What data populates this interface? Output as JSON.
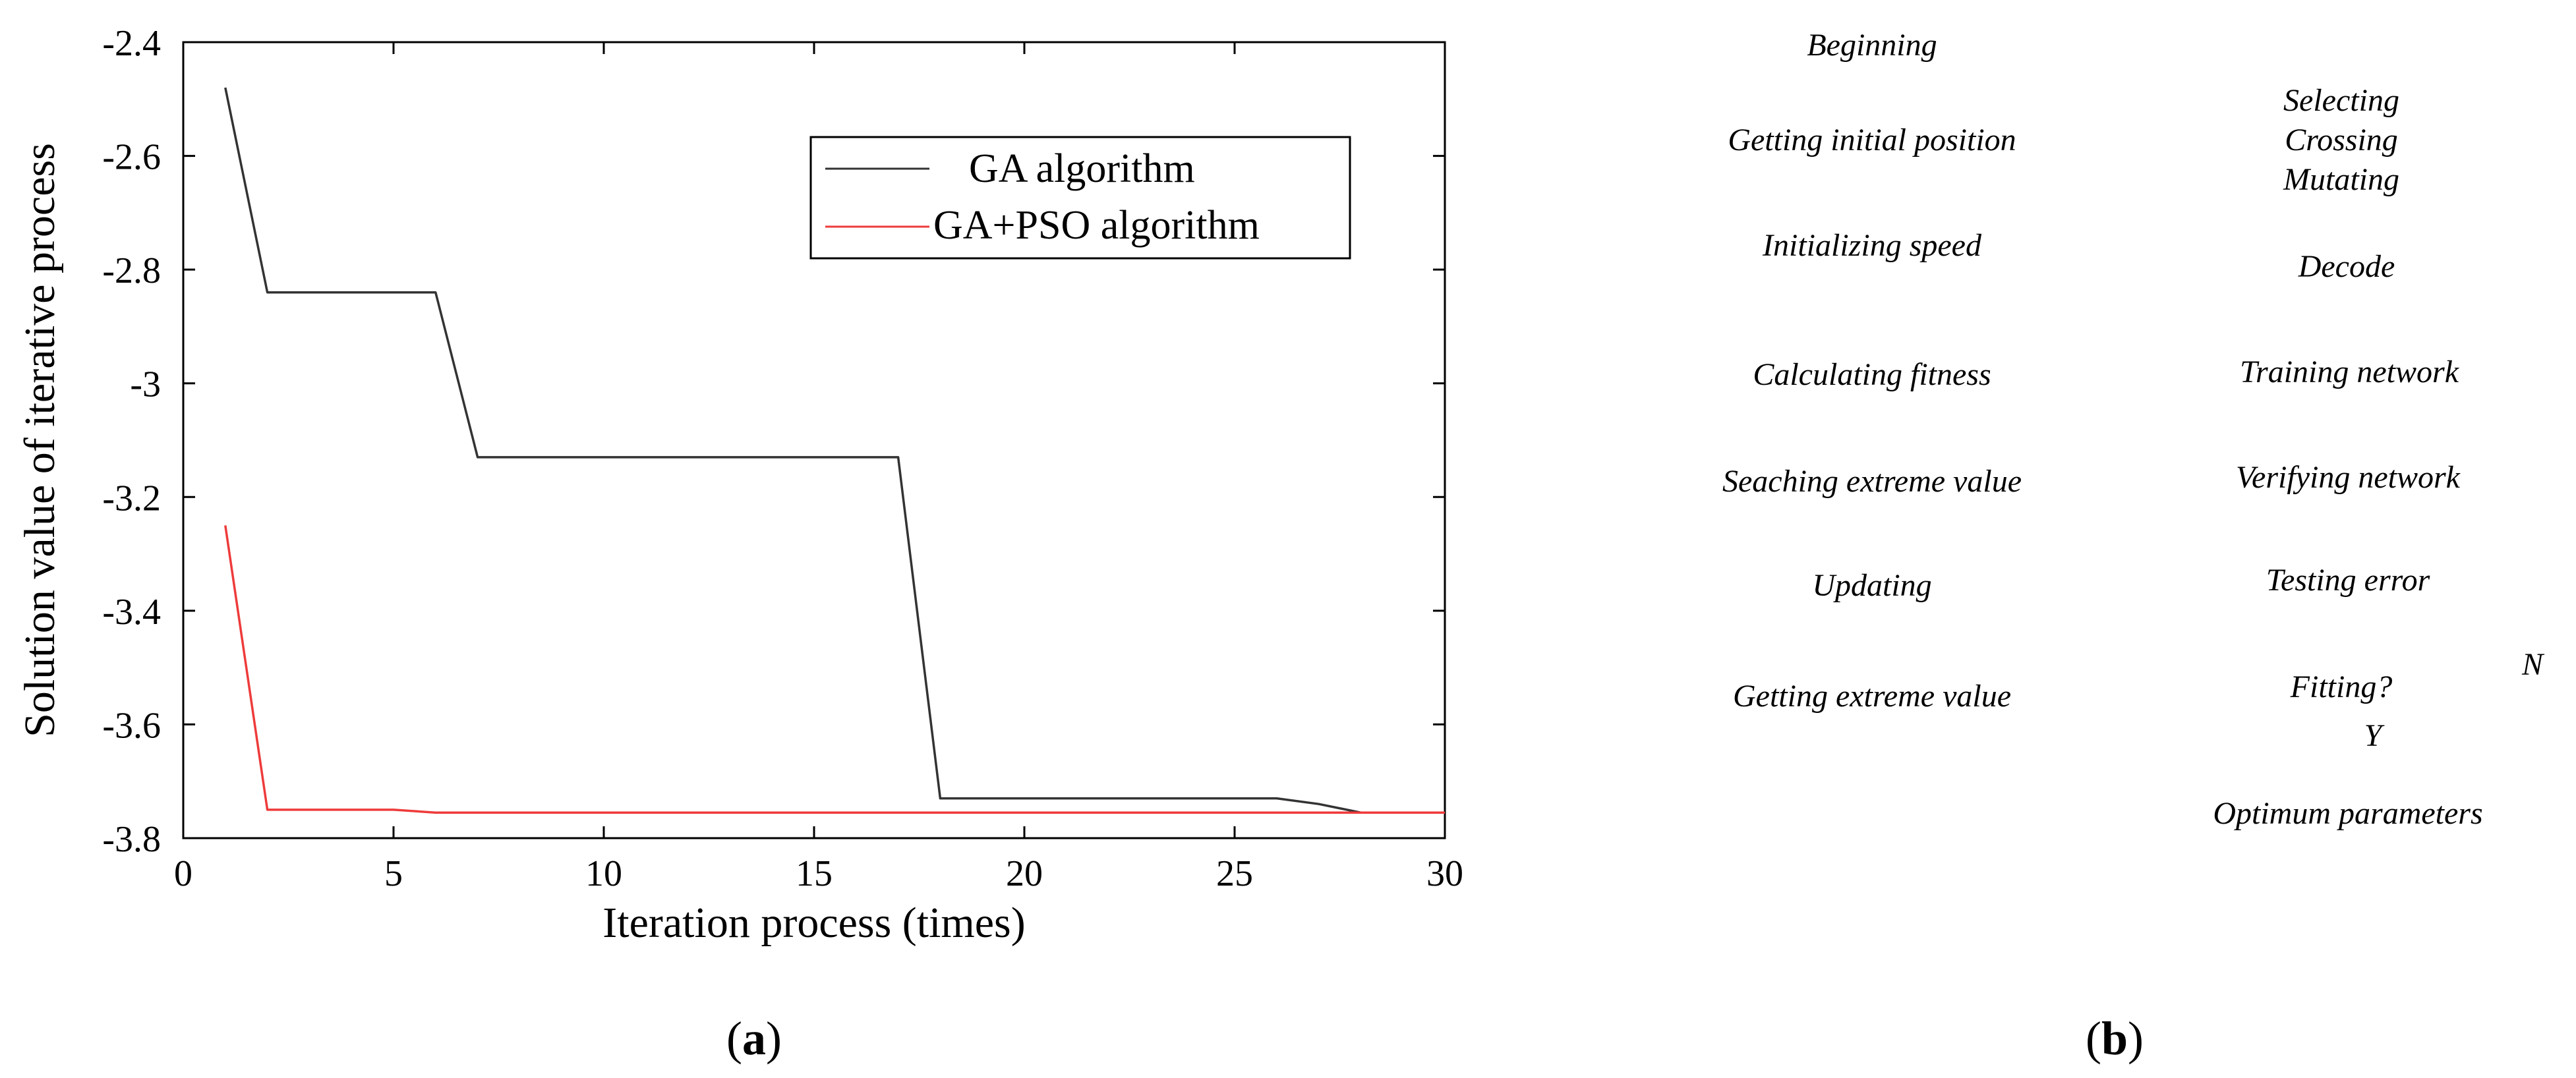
{
  "chart_data": {
    "type": "line",
    "title": "",
    "xlabel": "Iteration process (times)",
    "ylabel": "Solution value of iterative process",
    "xlim": [
      0,
      30
    ],
    "ylim": [
      -3.8,
      -2.4
    ],
    "xticks": [
      0,
      5,
      10,
      15,
      20,
      25,
      30
    ],
    "xtick_labels": [
      "0",
      "5",
      "10",
      "15",
      "20",
      "25",
      "30"
    ],
    "yticks": [
      -2.4,
      -2.6,
      -2.8,
      -3.0,
      -3.2,
      -3.4,
      -3.6,
      -3.8
    ],
    "ytick_labels": [
      "-2.4",
      "-2.6",
      "-2.8",
      "-3",
      "-3.2",
      "-3.4",
      "-3.6",
      "-3.8"
    ],
    "legend_position": "top-right",
    "series": [
      {
        "name": "GA algorithm",
        "color": "#333333",
        "x": [
          1,
          2,
          3,
          4,
          5,
          6,
          7,
          8,
          9,
          10,
          11,
          12,
          13,
          14,
          15,
          16,
          17,
          18,
          19,
          20,
          21,
          22,
          23,
          24,
          25,
          26,
          27,
          28,
          29,
          30
        ],
        "y": [
          -2.48,
          -2.84,
          -2.84,
          -2.84,
          -2.84,
          -2.84,
          -3.13,
          -3.13,
          -3.13,
          -3.13,
          -3.13,
          -3.13,
          -3.13,
          -3.13,
          -3.13,
          -3.13,
          -3.13,
          -3.73,
          -3.73,
          -3.73,
          -3.73,
          -3.73,
          -3.73,
          -3.73,
          -3.73,
          -3.73,
          -3.74,
          -3.755,
          -3.755,
          -3.755
        ]
      },
      {
        "name": "GA+PSO algorithm",
        "color": "#ee3b3b",
        "x": [
          1,
          2,
          3,
          4,
          5,
          6,
          7,
          8,
          9,
          10,
          11,
          12,
          13,
          14,
          15,
          16,
          17,
          18,
          19,
          20,
          21,
          22,
          23,
          24,
          25,
          26,
          27,
          28,
          29,
          30
        ],
        "y": [
          -3.25,
          -3.75,
          -3.75,
          -3.75,
          -3.75,
          -3.755,
          -3.755,
          -3.755,
          -3.755,
          -3.755,
          -3.755,
          -3.755,
          -3.755,
          -3.755,
          -3.755,
          -3.755,
          -3.755,
          -3.755,
          -3.755,
          -3.755,
          -3.755,
          -3.755,
          -3.755,
          -3.755,
          -3.755,
          -3.755,
          -3.755,
          -3.755,
          -3.755,
          -3.755
        ]
      }
    ]
  },
  "flowchart": {
    "left_column": [
      "Beginning",
      "Getting initial position",
      "Initializing speed",
      "Calculating fitness",
      "Seaching extreme value",
      "Updating",
      "Getting extreme value"
    ],
    "right_column": [
      "Selecting",
      "Crossing",
      "Mutating",
      "Decode",
      "Training network",
      "Verifying network",
      "Testing error",
      "Fitting?",
      "Optimum parameters"
    ],
    "branch_no": "N",
    "branch_yes": "Y"
  },
  "captions": {
    "a_open": "(",
    "a_letter": "a",
    "a_close": ")",
    "b_open": "(",
    "b_letter": "b",
    "b_close": ")"
  }
}
